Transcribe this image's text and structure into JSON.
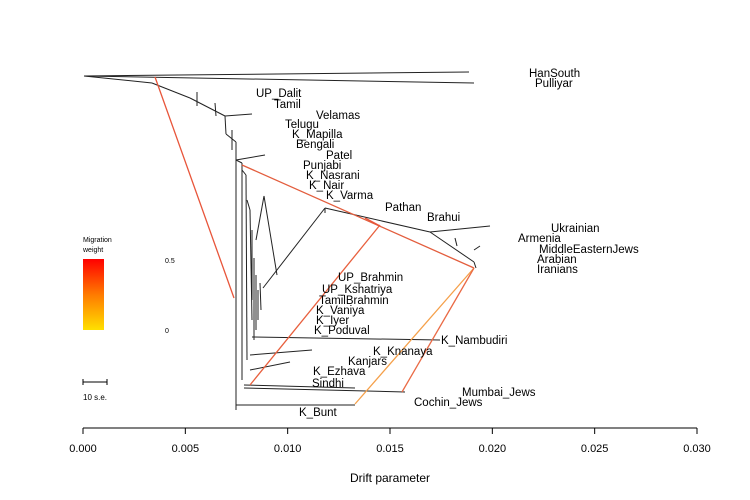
{
  "chart_data": {
    "type": "tree",
    "xlabel": "Drift parameter",
    "xlim": [
      0.0,
      0.03
    ],
    "x_ticks": [
      "0.000",
      "0.005",
      "0.010",
      "0.015",
      "0.020",
      "0.025",
      "0.030"
    ],
    "x_tick_values": [
      0.0,
      0.005,
      0.01,
      0.015,
      0.02,
      0.025,
      0.03
    ],
    "populations": [
      "HanSouth",
      "Pulliyar",
      "UP_Dalit",
      "Tamil",
      "Velamas",
      "Telugu",
      "K_Mapilla",
      "Bengali",
      "Patel",
      "Punjabi",
      "K_Nasrani",
      "K_Nair",
      "K_Varma",
      "Pathan",
      "Brahui",
      "Ukrainian",
      "Armenia",
      "MiddleEasternJews",
      "Arabian",
      "Iranians",
      "UP_Brahmin",
      "UP_Kshatriya",
      "TamilBrahmin",
      "K_Vaniya",
      "K_Iyer",
      "K_Poduval",
      "K_Nambudiri",
      "K_Knanaya",
      "Kanjars",
      "K_Ezhava",
      "Sindhi",
      "Mumbai_Jews",
      "Cochin_Jews",
      "K_Bunt"
    ],
    "legend": {
      "title_line1": "Migration",
      "title_line2": "weight",
      "high_label": "0.5",
      "low_label": "0",
      "colors": [
        "#ff0000",
        "#ff7a00",
        "#ffe000"
      ]
    },
    "scale_bar_label": "10 s.e.",
    "migration_edges": [
      {
        "weight": 0.45,
        "color": "#e8553a"
      },
      {
        "weight": 0.4,
        "color": "#e35d3d"
      },
      {
        "weight": 0.35,
        "color": "#e8603e"
      },
      {
        "weight": 0.1,
        "color": "#f5a04a"
      },
      {
        "weight": 0.3,
        "color": "#ea6a45"
      }
    ]
  }
}
